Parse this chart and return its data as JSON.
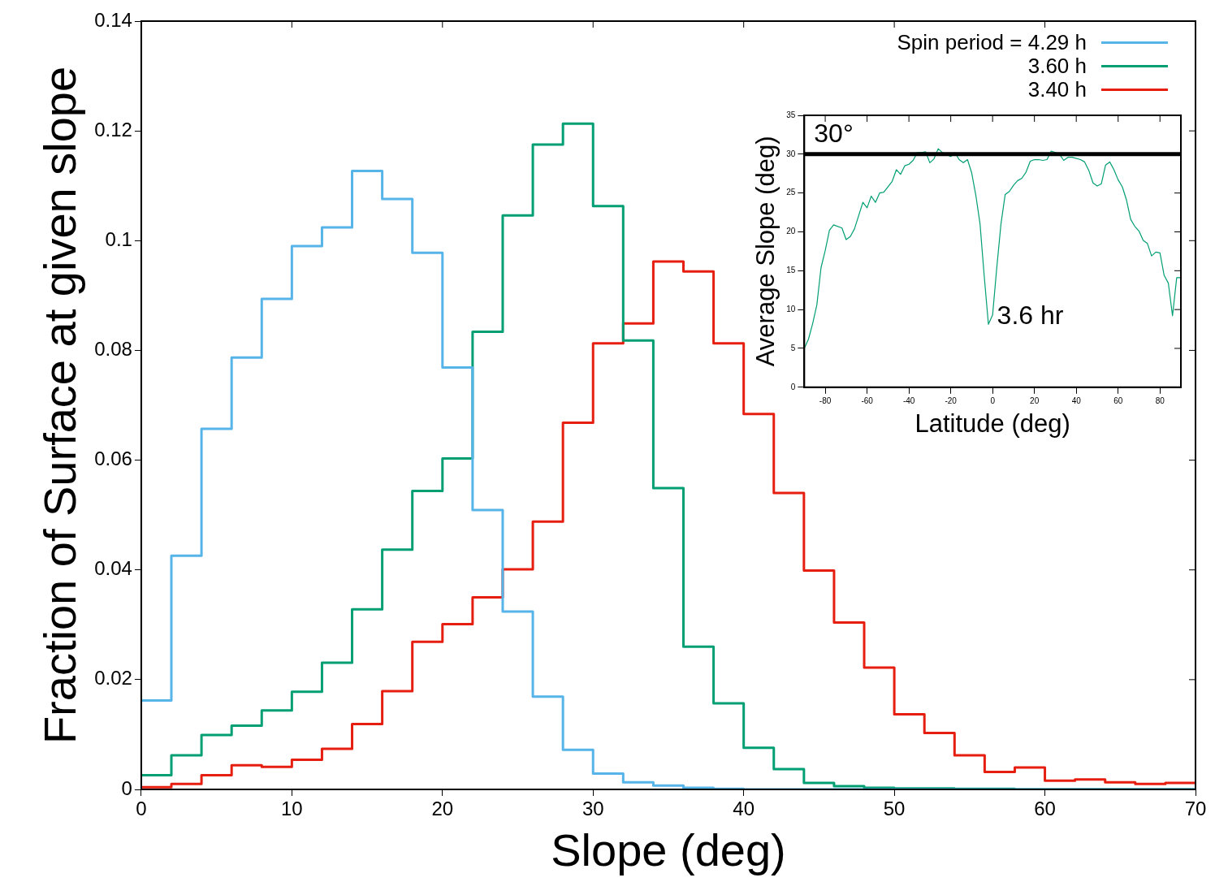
{
  "chart_data": [
    {
      "type": "histogram",
      "xlabel": "Slope (deg)",
      "ylabel": "Fraction of Surface at given slope",
      "bins": [
        0,
        2,
        4,
        6,
        8,
        10,
        12,
        14,
        16,
        18,
        20,
        22,
        24,
        26,
        28,
        30,
        32,
        34,
        36,
        38,
        40,
        42,
        44,
        46,
        48,
        50,
        52,
        54,
        56,
        58,
        60,
        62,
        64,
        66,
        68,
        70
      ],
      "series": [
        {
          "name": "Spin period = 4.29 h",
          "color": "#56b4e9",
          "values": [
            0.0162,
            0.0426,
            0.0657,
            0.0787,
            0.0894,
            0.099,
            0.1024,
            0.1127,
            0.1076,
            0.0978,
            0.0769,
            0.0509,
            0.0324,
            0.0169,
            0.0072,
            0.0029,
            0.0013,
            0.0007,
            0.0003,
            0.0001,
            0,
            0,
            0,
            0,
            0,
            0,
            0,
            0,
            0,
            0,
            0,
            0,
            0,
            0,
            0
          ]
        },
        {
          "name": "3.60 h",
          "color": "#009e73",
          "values": [
            0.0026,
            0.0062,
            0.0099,
            0.0116,
            0.0144,
            0.0178,
            0.0231,
            0.0328,
            0.0437,
            0.0544,
            0.0603,
            0.0834,
            0.1046,
            0.1175,
            0.1213,
            0.1063,
            0.0818,
            0.0549,
            0.026,
            0.0157,
            0.0076,
            0.0037,
            0.0012,
            0.0006,
            0.0003,
            0.0002,
            0.0002,
            0.0001,
            0.0001,
            0,
            0,
            0,
            0,
            0,
            0
          ]
        },
        {
          "name": "3.40 h",
          "color": "#e51e10",
          "values": [
            0.0004,
            0.001,
            0.0026,
            0.0044,
            0.0041,
            0.0054,
            0.0074,
            0.0119,
            0.0179,
            0.0269,
            0.0301,
            0.035,
            0.0401,
            0.0488,
            0.0668,
            0.0813,
            0.0849,
            0.0962,
            0.0944,
            0.0813,
            0.0684,
            0.054,
            0.0399,
            0.0304,
            0.0222,
            0.0137,
            0.0103,
            0.0062,
            0.0032,
            0.004,
            0.0016,
            0.0018,
            0.0013,
            0.001,
            0.0012
          ]
        }
      ],
      "xlim": [
        0,
        70
      ],
      "xticks": [
        0,
        10,
        20,
        30,
        40,
        50,
        60,
        70
      ],
      "ylim": [
        0,
        0.14
      ],
      "yticks": [
        0,
        0.02,
        0.04,
        0.06,
        0.08,
        0.1,
        0.12,
        0.14
      ],
      "legend": "top right"
    },
    {
      "type": "line",
      "xlabel": "Latitude (deg)",
      "ylabel": "Average Slope (deg)",
      "x": [
        -90,
        -88,
        -86,
        -84,
        -82,
        -80,
        -78,
        -76,
        -72,
        -70,
        -68,
        -66,
        -62,
        -60,
        -58,
        -56,
        -54,
        -52,
        -48,
        -46,
        -44,
        -42,
        -40,
        -38,
        -36,
        -34,
        -32,
        -30,
        -28,
        -26,
        -24,
        -20,
        -18,
        -16,
        -14,
        -12,
        -10,
        -8,
        -6,
        -4,
        -2,
        0,
        2,
        4,
        6,
        8,
        10,
        12,
        14,
        16,
        18,
        20,
        22,
        24,
        26,
        28,
        30,
        32,
        34,
        36,
        38,
        42,
        44,
        46,
        48,
        50,
        52,
        54,
        56,
        58,
        60,
        62,
        64,
        66,
        68,
        70,
        72,
        74,
        76,
        78,
        80,
        82,
        84,
        86,
        88,
        90
      ],
      "series": [
        {
          "color": "#009e73",
          "values": [
            5.0,
            6.2,
            8.2,
            10.6,
            15.4,
            17.6,
            20.2,
            20.9,
            20.5,
            19.0,
            19.4,
            20.4,
            23.8,
            23.1,
            24.6,
            23.8,
            25.0,
            25.1,
            26.5,
            28.0,
            27.4,
            28.5,
            28.7,
            29.2,
            30.2,
            30.2,
            30.3,
            28.9,
            29.4,
            30.7,
            30.2,
            29.7,
            30.2,
            29.3,
            28.9,
            29.3,
            27.6,
            24.7,
            21.0,
            14.3,
            8.1,
            9.3,
            15.4,
            21.0,
            24.8,
            25.2,
            26.0,
            26.6,
            26.9,
            27.7,
            29.1,
            29.3,
            29.3,
            29.2,
            29.3,
            30.4,
            30.2,
            30.0,
            29.2,
            29.6,
            29.6,
            29.3,
            29.0,
            27.9,
            26.3,
            25.9,
            26.2,
            28.6,
            29.0,
            28.0,
            26.7,
            25.8,
            24.1,
            21.6,
            20.7,
            20.1,
            18.9,
            18.5,
            16.9,
            17.4,
            17.3,
            14.4,
            13.4,
            9.2,
            14.1,
            14.1
          ]
        }
      ],
      "xlim": [
        -90,
        90
      ],
      "xticks": [
        -80,
        -60,
        -40,
        -20,
        0,
        20,
        40,
        60,
        80
      ],
      "ylim": [
        0,
        35
      ],
      "yticks": [
        0,
        5,
        10,
        15,
        20,
        25,
        30,
        35
      ],
      "ref_lines": [
        {
          "axis": "y",
          "value": 30,
          "label": "30°",
          "color": "#000000"
        }
      ],
      "annotations": [
        "3.6 hr"
      ]
    }
  ]
}
